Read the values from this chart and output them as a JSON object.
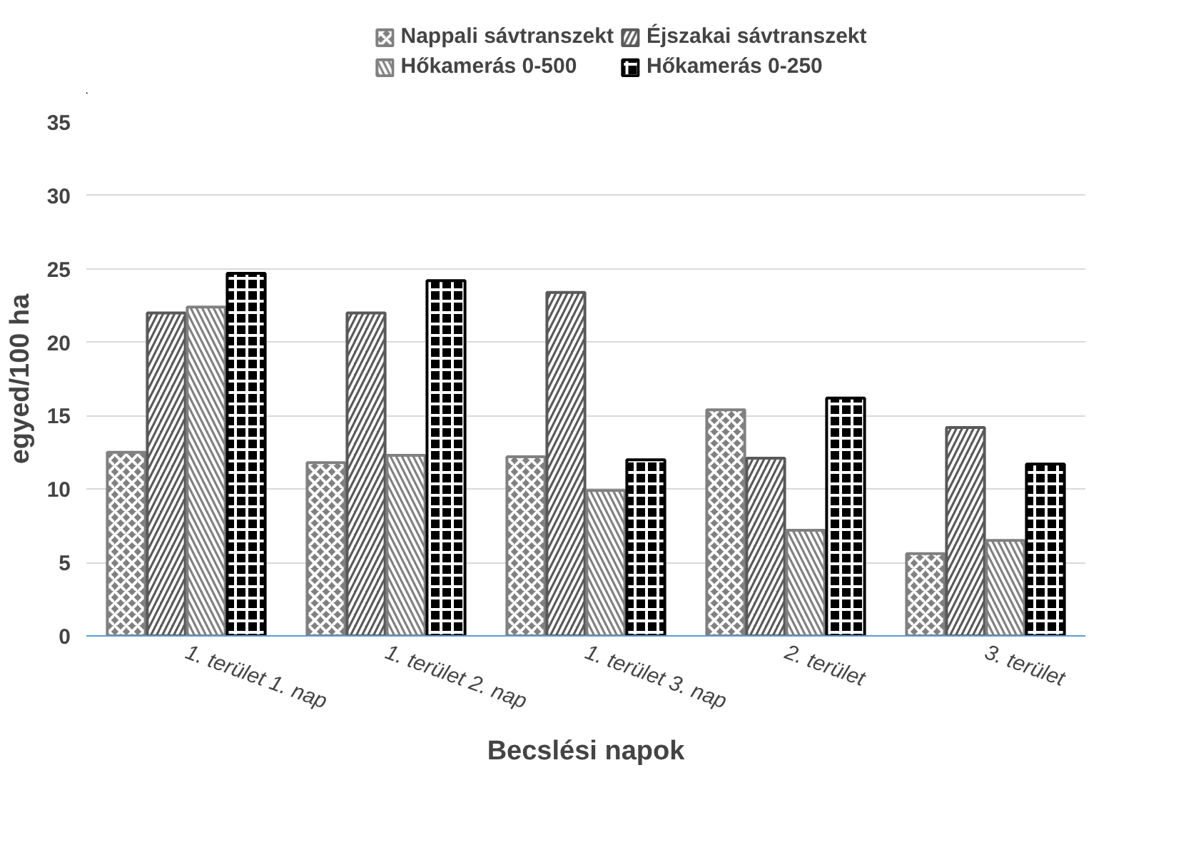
{
  "chart_data": {
    "type": "bar",
    "xlabel": "Becslési napok",
    "ylabel": "egyed/100 ha",
    "categories": [
      "1. terület 1. nap",
      "1. terület 2. nap",
      "1. terület 3. nap",
      "2. terület",
      "3. terület"
    ],
    "series": [
      {
        "name": "Nappali sávtranszekt",
        "color": "#808080",
        "values": [
          12.5,
          11.8,
          12.2,
          15.4,
          5.6
        ]
      },
      {
        "name": "Éjszakai sávtranszekt",
        "color": "#595959",
        "values": [
          22.0,
          22.0,
          23.4,
          12.1,
          14.2
        ]
      },
      {
        "name": "Hőkamerás 0-500",
        "color": "#808080",
        "values": [
          22.4,
          12.3,
          9.9,
          7.2,
          6.5
        ]
      },
      {
        "name": "Hőkamerás 0-250",
        "color": "#000000",
        "values": [
          24.7,
          24.2,
          12.0,
          16.2,
          11.7
        ]
      }
    ],
    "ylim": [
      0,
      35
    ],
    "yticks": [
      0,
      5,
      10,
      15,
      20,
      25,
      30,
      35
    ],
    "grid": "y",
    "legend": "top"
  }
}
